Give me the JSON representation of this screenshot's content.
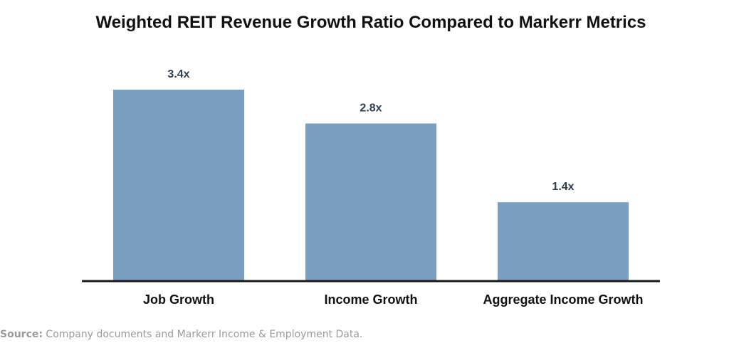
{
  "chart_data": {
    "type": "bar",
    "title": "Weighted REIT Revenue Growth Ratio Compared to Markerr Metrics",
    "categories": [
      "Job Growth",
      "Income Growth",
      "Aggregate Income Growth"
    ],
    "values": [
      3.4,
      2.8,
      1.4
    ],
    "value_labels": [
      "3.4x",
      "2.8x",
      "1.4x"
    ],
    "ylim": [
      0,
      3.4
    ],
    "grid": false,
    "xlabel": "",
    "ylabel": ""
  },
  "source": {
    "label": "Source:",
    "text": "Company documents and Markerr Income & Employment Data."
  },
  "colors": {
    "bar": "#7b9fc1",
    "axis": "#1a1a1a",
    "value_label": "#2f3e4e",
    "title": "#111111",
    "source": "#9a9a9a"
  }
}
